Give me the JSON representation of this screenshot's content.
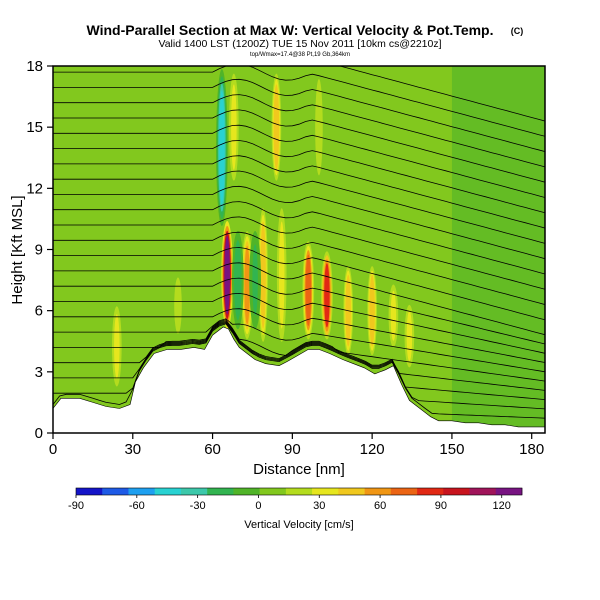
{
  "figure": {
    "title": "Wind-Parallel Section at Max W: Vertical Velocity & Pot.Temp.",
    "copyright_mark": "(C)",
    "subtitle": "Valid 1400 LST (1200Z) TUE 15 Nov 2011 [10km cs@2210z]",
    "subtitle2": "top/Wmax=17.4@38 Pt,19 Gb,364km"
  },
  "chart_data": {
    "type": "heatmap",
    "xlabel": "Distance [nm]",
    "ylabel": "Height [Kft MSL]",
    "xlim": [
      0,
      185
    ],
    "ylim": [
      0,
      18
    ],
    "xticks": [
      0,
      30,
      60,
      90,
      120,
      150,
      180
    ],
    "yticks": [
      0,
      3,
      6,
      9,
      12,
      15,
      18
    ],
    "colorbar": {
      "label": "Vertical Velocity [cm/s]",
      "range": [
        -90,
        130
      ],
      "ticks": [
        -90,
        -60,
        -30,
        0,
        30,
        60,
        90,
        120
      ],
      "colors": [
        "#1414c8",
        "#1e5ae6",
        "#1ea0f0",
        "#28d2d2",
        "#3cc8aa",
        "#32b450",
        "#50b428",
        "#82c81e",
        "#b4dc1e",
        "#e6e61e",
        "#f0c81e",
        "#f09614",
        "#eb6414",
        "#e12814",
        "#c8141e",
        "#a0145a",
        "#781482"
      ]
    },
    "terrain": {
      "x": [
        0,
        3,
        10,
        15,
        20,
        25,
        29,
        31,
        34,
        38,
        43,
        48,
        53,
        57,
        60,
        64,
        66,
        68,
        70,
        73,
        76,
        80,
        85,
        88,
        92,
        96,
        100,
        104,
        109,
        113,
        117,
        121,
        125,
        128,
        131,
        134,
        137,
        140,
        142,
        145,
        150,
        155,
        160,
        165,
        170,
        175,
        180,
        185
      ],
      "height": [
        1.2,
        1.7,
        1.7,
        1.5,
        1.3,
        1.2,
        1.4,
        2.5,
        3.2,
        3.9,
        4.1,
        4.1,
        4.2,
        4.1,
        4.8,
        5.2,
        5.1,
        4.6,
        4.2,
        3.9,
        3.6,
        3.4,
        3.3,
        3.5,
        3.8,
        4.1,
        4.1,
        3.9,
        3.6,
        3.4,
        3.2,
        2.9,
        3.1,
        3.3,
        2.4,
        1.6,
        1.3,
        1.0,
        0.8,
        0.6,
        0.6,
        0.5,
        0.5,
        0.4,
        0.4,
        0.3,
        0.3,
        0.3
      ]
    },
    "updraft_bands": [
      {
        "x": 65.5,
        "ymin": 5.0,
        "ymax": 10.5,
        "peak": 125
      },
      {
        "x": 73,
        "ymin": 4.5,
        "ymax": 10.0,
        "peak": 60
      },
      {
        "x": 79,
        "ymin": 4.0,
        "ymax": 11.5,
        "peak": 45
      },
      {
        "x": 86,
        "ymin": 4.0,
        "ymax": 11.5,
        "peak": 35
      },
      {
        "x": 96,
        "ymin": 4.5,
        "ymax": 9.5,
        "peak": 70
      },
      {
        "x": 103,
        "ymin": 4.5,
        "ymax": 9.0,
        "peak": 80
      },
      {
        "x": 111,
        "ymin": 3.5,
        "ymax": 8.5,
        "peak": 40
      },
      {
        "x": 120,
        "ymin": 3.5,
        "ymax": 8.5,
        "peak": 40
      },
      {
        "x": 128,
        "ymin": 4.0,
        "ymax": 7.5,
        "peak": 35
      },
      {
        "x": 134,
        "ymin": 3.0,
        "ymax": 6.5,
        "peak": 30
      },
      {
        "x": 24,
        "ymin": 2.0,
        "ymax": 6.5,
        "peak": 30
      },
      {
        "x": 47,
        "ymin": 4.5,
        "ymax": 8.0,
        "peak": 25
      },
      {
        "x": 84,
        "ymin": 12.0,
        "ymax": 18.0,
        "peak": 40
      },
      {
        "x": 68,
        "ymin": 12.0,
        "ymax": 18.0,
        "peak": 30
      },
      {
        "x": 100,
        "ymin": 12.0,
        "ymax": 18.0,
        "peak": 25
      }
    ],
    "downdraft_bands": [
      {
        "x": 63.5,
        "ymin": 10.0,
        "ymax": 18.0,
        "peak": -40
      },
      {
        "x": 69.5,
        "ymin": 5.0,
        "ymax": 10.0,
        "peak": -20
      },
      {
        "x": 76,
        "ymin": 5.0,
        "ymax": 10.0,
        "peak": -15
      }
    ]
  }
}
